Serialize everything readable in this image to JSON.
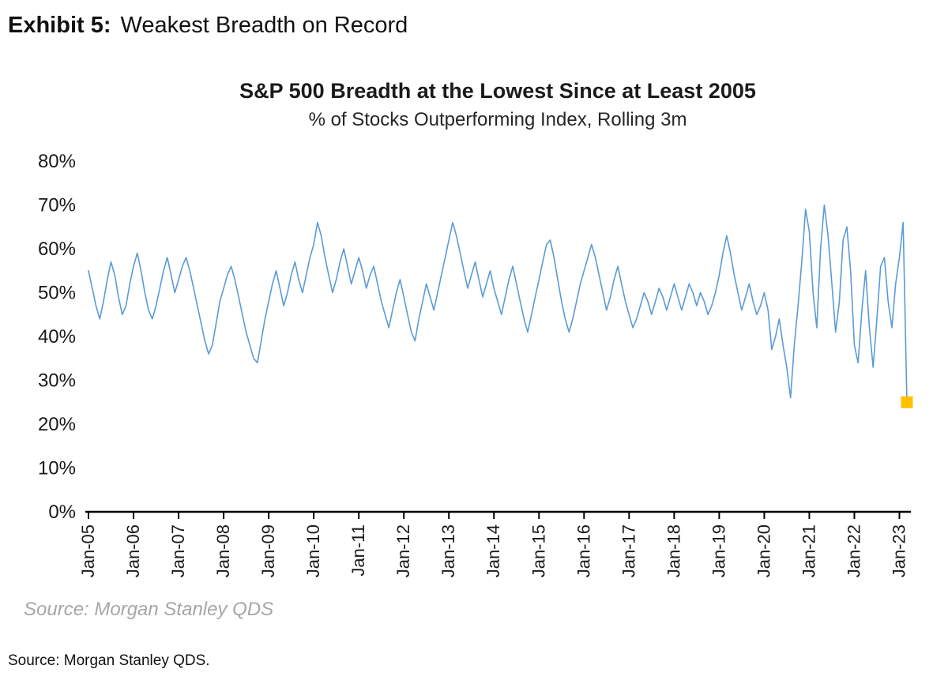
{
  "page": {
    "exhibit_label": "Exhibit 5:",
    "exhibit_title": "Weakest Breadth on Record",
    "footer_source": "Source: Morgan Stanley QDS."
  },
  "chart_data": {
    "type": "line",
    "title": "S&P 500 Breadth at the Lowest Since at Least 2005",
    "subtitle": "% of Stocks Outperforming Index, Rolling 3m",
    "source_note": "Source: Morgan Stanley QDS",
    "line_color": "#5B9BD5",
    "line_width": 1.6,
    "axis_color": "#000000",
    "ylim": [
      0,
      80
    ],
    "y_ticks": [
      {
        "v": 0,
        "label": "0%"
      },
      {
        "v": 10,
        "label": "10%"
      },
      {
        "v": 20,
        "label": "20%"
      },
      {
        "v": 30,
        "label": "30%"
      },
      {
        "v": 40,
        "label": "40%"
      },
      {
        "v": 50,
        "label": "50%"
      },
      {
        "v": 60,
        "label": "60%"
      },
      {
        "v": 70,
        "label": "70%"
      },
      {
        "v": 80,
        "label": "80%"
      }
    ],
    "x_ticks": [
      {
        "label": "Jan-05",
        "month_index": 0
      },
      {
        "label": "Jan-06",
        "month_index": 12
      },
      {
        "label": "Jan-07",
        "month_index": 24
      },
      {
        "label": "Jan-08",
        "month_index": 36
      },
      {
        "label": "Jan-09",
        "month_index": 48
      },
      {
        "label": "Jan-10",
        "month_index": 60
      },
      {
        "label": "Jan-11",
        "month_index": 72
      },
      {
        "label": "Jan-12",
        "month_index": 84
      },
      {
        "label": "Jan-13",
        "month_index": 96
      },
      {
        "label": "Jan-14",
        "month_index": 108
      },
      {
        "label": "Jan-15",
        "month_index": 120
      },
      {
        "label": "Jan-16",
        "month_index": 132
      },
      {
        "label": "Jan-17",
        "month_index": 144
      },
      {
        "label": "Jan-18",
        "month_index": 156
      },
      {
        "label": "Jan-19",
        "month_index": 168
      },
      {
        "label": "Jan-20",
        "month_index": 180
      },
      {
        "label": "Jan-21",
        "month_index": 192
      },
      {
        "label": "Jan-22",
        "month_index": 204
      },
      {
        "label": "Jan-23",
        "month_index": 216
      }
    ],
    "series_name": "% of S&P 500 stocks outperforming index, rolling 3m",
    "values": [
      55,
      51,
      47,
      44,
      48,
      53,
      57,
      54,
      49,
      45,
      47,
      52,
      56,
      59,
      55,
      50,
      46,
      44,
      47,
      51,
      55,
      58,
      54,
      50,
      53,
      56,
      58,
      55,
      51,
      47,
      43,
      39,
      36,
      38,
      43,
      48,
      51,
      54,
      56,
      53,
      49,
      45,
      41,
      38,
      35,
      34,
      39,
      44,
      48,
      52,
      55,
      51,
      47,
      50,
      54,
      57,
      53,
      50,
      54,
      58,
      61,
      66,
      63,
      58,
      54,
      50,
      53,
      57,
      60,
      56,
      52,
      55,
      58,
      55,
      51,
      54,
      56,
      52,
      48,
      45,
      42,
      46,
      50,
      53,
      49,
      45,
      41,
      39,
      44,
      48,
      52,
      49,
      46,
      50,
      54,
      58,
      62,
      66,
      63,
      59,
      55,
      51,
      54,
      57,
      53,
      49,
      52,
      55,
      51,
      48,
      45,
      49,
      53,
      56,
      52,
      48,
      44,
      41,
      45,
      49,
      53,
      57,
      61,
      62,
      58,
      53,
      48,
      44,
      41,
      44,
      48,
      52,
      55,
      58,
      61,
      58,
      54,
      50,
      46,
      49,
      53,
      56,
      52,
      48,
      45,
      42,
      44,
      47,
      50,
      48,
      45,
      48,
      51,
      49,
      46,
      49,
      52,
      49,
      46,
      49,
      52,
      50,
      47,
      50,
      48,
      45,
      47,
      50,
      54,
      59,
      63,
      59,
      54,
      50,
      46,
      49,
      52,
      48,
      45,
      47,
      50,
      46,
      37,
      40,
      44,
      38,
      33,
      26,
      38,
      47,
      57,
      69,
      64,
      50,
      42,
      60,
      70,
      63,
      52,
      41,
      48,
      62,
      65,
      55,
      38,
      34,
      46,
      55,
      42,
      33,
      44,
      56,
      58,
      48,
      42,
      52,
      58,
      66,
      25
    ],
    "highlight": {
      "index": 218,
      "value": 25,
      "color": "#FFC000",
      "shape": "square",
      "size": 15
    }
  }
}
